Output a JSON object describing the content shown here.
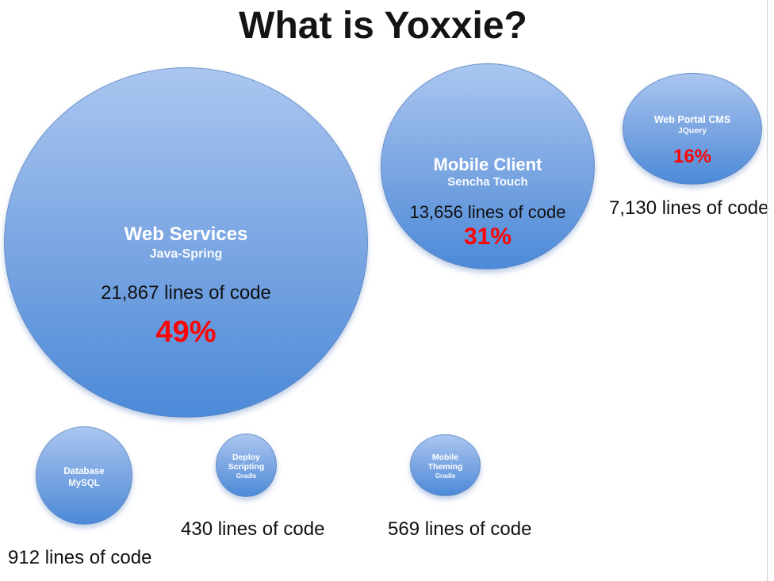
{
  "slide": {
    "title": "What is Yoxxie?"
  },
  "bubbles": {
    "web_services": {
      "name": "Web Services",
      "tech": "Java-Spring",
      "loc": "21,867 lines of code",
      "percent": "49%"
    },
    "mobile_client": {
      "name": "Mobile Client",
      "tech": "Sencha Touch",
      "loc": "13,656 lines of code",
      "percent": "31%"
    },
    "web_portal_cms": {
      "name": "Web Portal CMS",
      "tech": "JQuery",
      "percent": "16%",
      "loc_label": "7,130 lines of code"
    },
    "database": {
      "name": "Database",
      "tech": "MySQL",
      "loc_label": "912 lines of code"
    },
    "deploy_scripting": {
      "name_line1": "Deploy",
      "name_line2": "Scripting",
      "tech": "Gradle",
      "loc_label": "430 lines of code"
    },
    "mobile_theming": {
      "name_line1": "Mobile",
      "name_line2": "Theming",
      "tech": "Gradle",
      "loc_label": "569 lines of code"
    }
  },
  "colors": {
    "bubble_gradient_top": "#aac6f0",
    "bubble_gradient_bottom": "#4c8ad8",
    "percent_red": "#fa0606",
    "text_black": "#101010",
    "text_white": "#ffffff",
    "background": "#ffffff"
  },
  "chart_data": {
    "type": "bubble",
    "title": "What is Yoxxie?",
    "value_unit": "lines of code",
    "points": [
      {
        "label": "Web Services",
        "technology": "Java-Spring",
        "lines_of_code": 21867,
        "percent": 49,
        "size_rank": 1
      },
      {
        "label": "Mobile Client",
        "technology": "Sencha Touch",
        "lines_of_code": 13656,
        "percent": 31,
        "size_rank": 2
      },
      {
        "label": "Web Portal CMS",
        "technology": "JQuery",
        "lines_of_code": 7130,
        "percent": 16,
        "size_rank": 3
      },
      {
        "label": "Database",
        "technology": "MySQL",
        "lines_of_code": 912,
        "percent": null,
        "size_rank": 4
      },
      {
        "label": "Mobile Theming",
        "technology": "Gradle",
        "lines_of_code": 569,
        "percent": null,
        "size_rank": 5
      },
      {
        "label": "Deploy Scripting",
        "technology": "Gradle",
        "lines_of_code": 430,
        "percent": null,
        "size_rank": 6
      }
    ],
    "layout": "free-floating bubbles on white slide, bubble area proportional to lines of code",
    "legend": "none",
    "grid": false
  }
}
